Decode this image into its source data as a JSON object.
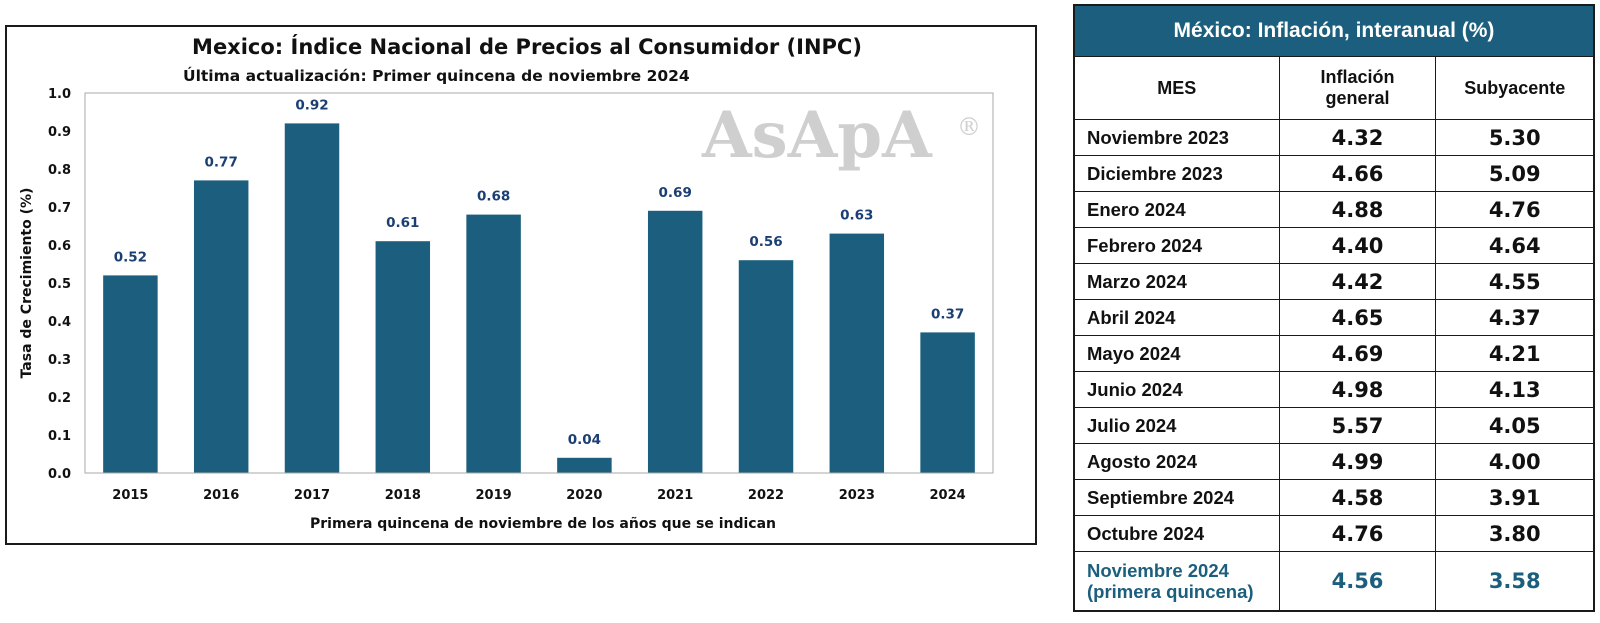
{
  "chart_data": {
    "type": "bar",
    "title": "Mexico: Índice Nacional de Precios al Consumidor (INPC)",
    "subtitle": "Última actualización: Primer quincena de noviembre 2024",
    "xlabel": "Primera quincena de noviembre de los años que se indican",
    "ylabel": "Tasa de Crecimiento (%)",
    "categories": [
      "2015",
      "2016",
      "2017",
      "2018",
      "2019",
      "2020",
      "2021",
      "2022",
      "2023",
      "2024"
    ],
    "values": [
      0.52,
      0.77,
      0.92,
      0.61,
      0.68,
      0.04,
      0.69,
      0.56,
      0.63,
      0.37
    ],
    "value_labels": [
      "0.52",
      "0.77",
      "0.92",
      "0.61",
      "0.68",
      "0.04",
      "0.69",
      "0.56",
      "0.63",
      "0.37"
    ],
    "ylim": [
      0,
      1.0
    ],
    "yticks": [
      "0.0",
      "0.1",
      "0.2",
      "0.3",
      "0.4",
      "0.5",
      "0.6",
      "0.7",
      "0.8",
      "0.9",
      "1.0"
    ],
    "bar_color": "#1b5e7d",
    "value_label_color": "#1c3f73",
    "grid": false,
    "watermark": "AsApA",
    "watermark_mark": "®"
  },
  "table": {
    "title": "México: Inflación, interanual (%)",
    "headers": {
      "mes": "MES",
      "general_line1": "Inflación",
      "general_line2": "general",
      "subyacente": "Subyacente"
    },
    "rows": [
      {
        "mes": "Noviembre 2023",
        "general": "4.32",
        "subyacente": "5.30"
      },
      {
        "mes": "Diciembre 2023",
        "general": "4.66",
        "subyacente": "5.09"
      },
      {
        "mes": "Enero 2024",
        "general": "4.88",
        "subyacente": "4.76"
      },
      {
        "mes": "Febrero 2024",
        "general": "4.40",
        "subyacente": "4.64"
      },
      {
        "mes": "Marzo 2024",
        "general": "4.42",
        "subyacente": "4.55"
      },
      {
        "mes": "Abril 2024",
        "general": "4.65",
        "subyacente": "4.37"
      },
      {
        "mes": "Mayo 2024",
        "general": "4.69",
        "subyacente": "4.21"
      },
      {
        "mes": "Junio 2024",
        "general": "4.98",
        "subyacente": "4.13"
      },
      {
        "mes": "Julio 2024",
        "general": "5.57",
        "subyacente": "4.05"
      },
      {
        "mes": "Agosto 2024",
        "general": "4.99",
        "subyacente": "4.00"
      },
      {
        "mes": "Septiembre 2024",
        "general": "4.58",
        "subyacente": "3.91"
      },
      {
        "mes": "Octubre 2024",
        "general": "4.76",
        "subyacente": "3.80"
      }
    ],
    "last_row": {
      "mes_line1": "Noviembre 2024",
      "mes_line2": "(primera quincena)",
      "general": "4.56",
      "subyacente": "3.58"
    },
    "header_color": "#1b5e7d",
    "highlight_color": "#1b5e7d"
  }
}
